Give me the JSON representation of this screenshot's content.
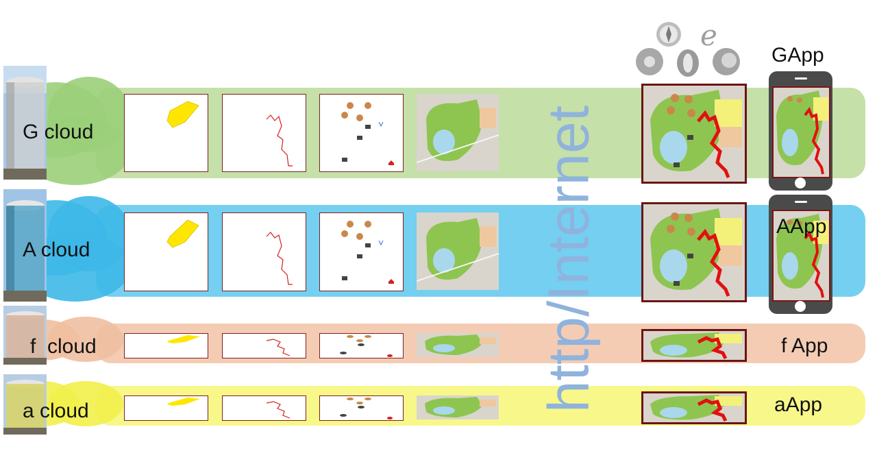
{
  "protocol_label": "http/Internet",
  "browser_icons": [
    "safari-icon",
    "internet-explorer-icon",
    "chrome-icon",
    "opera-icon",
    "firefox-icon"
  ],
  "rows": [
    {
      "id": "g",
      "cloud_label": "G cloud",
      "app_label": "GApp",
      "band_color": "#c5e0a8",
      "cloud_color": "#9bcf7a"
    },
    {
      "id": "a",
      "cloud_label": "A cloud",
      "app_label": "AApp",
      "band_color": "#74cff1",
      "cloud_color": "#3db8e8"
    },
    {
      "id": "f",
      "cloud_label": "f  cloud",
      "app_label": "f App",
      "band_color": "#f4ccb4",
      "cloud_color": "#efbfa0"
    },
    {
      "id": "aa",
      "cloud_label": "a cloud",
      "app_label": "aApp",
      "band_color": "#f8f78a",
      "cloud_color": "#f2f04a"
    }
  ],
  "layer_types": [
    "polygon-layer",
    "route-layer",
    "poi-layer",
    "basemap-layer"
  ]
}
